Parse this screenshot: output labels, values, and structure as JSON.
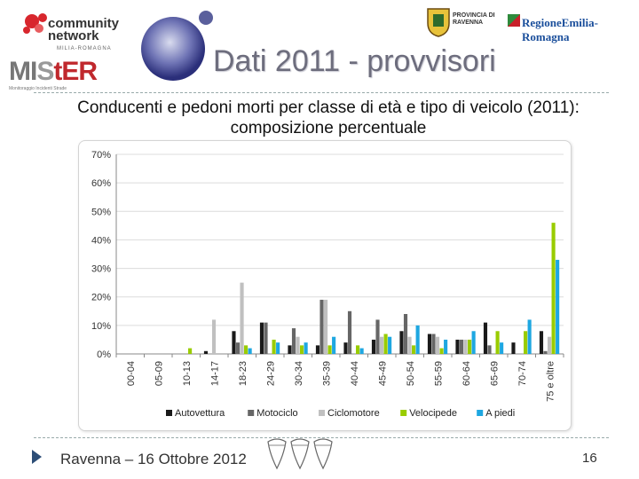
{
  "header": {
    "title": "Dati 2011 - provvisori",
    "community_logo": "community network",
    "community_sub": "MILIA-ROMAGNA",
    "mister_logo": {
      "prefix": "MI",
      "middle": "S",
      "t": "t",
      "suffix": "ER"
    },
    "mister_sub": "Monitoraggio   Incidenti   Strade",
    "provincia": [
      "PROVINCIA DI",
      "RAVENNA"
    ],
    "region": "RegioneEmilia-Romagna"
  },
  "subtitle": "Conducenti e pedoni morti per classe di età e tipo di veicolo (2011): composizione percentuale",
  "footer": {
    "text": "Ravenna – 16 Ottobre 2012",
    "page": "16"
  },
  "colors": {
    "Autovettura": "#1a1a1a",
    "Motociclo": "#666666",
    "Ciclomotore": "#c0c0c0",
    "Velocipede": "#99cc00",
    "A piedi": "#1ea7e1"
  },
  "chart_data": {
    "type": "bar",
    "title": "",
    "xlabel": "",
    "ylabel": "",
    "ylim": [
      0,
      70
    ],
    "yticks": [
      "0%",
      "10%",
      "20%",
      "30%",
      "40%",
      "50%",
      "60%",
      "70%"
    ],
    "grid": true,
    "legend": "bottom",
    "categories": [
      "00-04",
      "05-09",
      "10-13",
      "14-17",
      "18-23",
      "24-29",
      "30-34",
      "35-39",
      "40-44",
      "45-49",
      "50-54",
      "55-59",
      "60-64",
      "65-69",
      "70-74",
      "75 e oltre"
    ],
    "series": [
      {
        "name": "Autovettura",
        "values": [
          0,
          0,
          0,
          1,
          8,
          11,
          3,
          3,
          4,
          5,
          8,
          7,
          5,
          11,
          4,
          8
        ]
      },
      {
        "name": "Motociclo",
        "values": [
          0,
          0,
          0,
          0,
          4,
          11,
          9,
          19,
          15,
          12,
          14,
          7,
          5,
          3,
          0,
          1
        ]
      },
      {
        "name": "Ciclomotore",
        "values": [
          0,
          0,
          0,
          12,
          25,
          0,
          6,
          19,
          0,
          6,
          6,
          6,
          5,
          0,
          0,
          6
        ]
      },
      {
        "name": "Velocipede",
        "values": [
          0,
          0,
          2,
          0,
          3,
          5,
          3,
          3,
          3,
          7,
          3,
          2,
          5,
          8,
          8,
          46
        ]
      },
      {
        "name": "A piedi",
        "values": [
          0,
          0,
          0,
          0,
          2,
          4,
          4,
          6,
          2,
          6,
          10,
          5,
          8,
          4,
          12,
          33
        ]
      }
    ]
  }
}
